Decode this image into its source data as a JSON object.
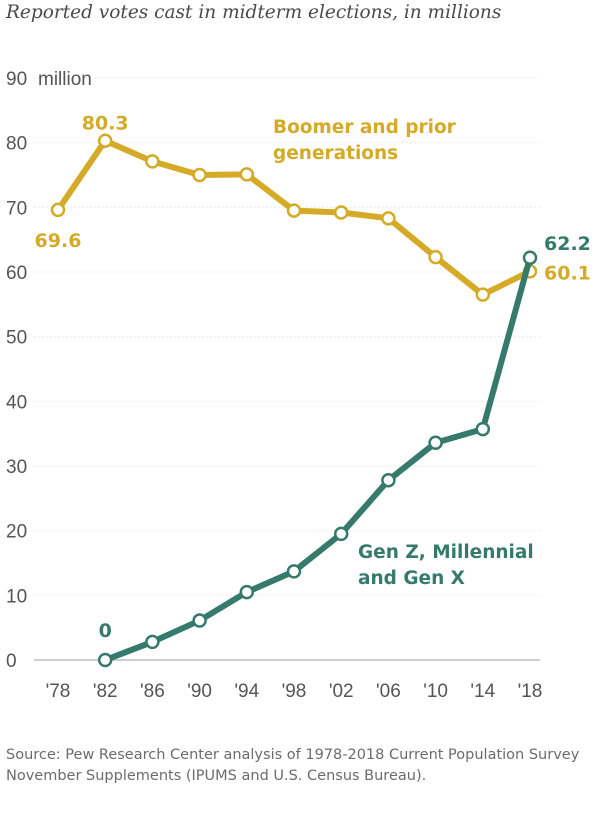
{
  "title": "Reported votes cast in midterm elections, in millions",
  "source": "Source: Pew Research Center analysis of 1978-2018 Current Population Survey November Supplements (IPUMS and U.S. Census Bureau).",
  "chart_data": {
    "type": "line",
    "categories": [
      "'78",
      "'82",
      "'86",
      "'90",
      "'94",
      "'98",
      "'02",
      "'06",
      "'10",
      "'14",
      "'18"
    ],
    "ylim": [
      0,
      90
    ],
    "yticks": [
      "0",
      "10",
      "20",
      "30",
      "40",
      "50",
      "60",
      "70",
      "80",
      "90"
    ],
    "ytick_top_suffix": "million",
    "grid": true,
    "series": [
      {
        "name": "Boomer and prior generations",
        "legend_lines": [
          "Boomer and prior",
          "generations"
        ],
        "color": "#d4aa27",
        "values": [
          69.6,
          80.3,
          77.1,
          75.0,
          75.1,
          69.5,
          69.2,
          68.3,
          62.3,
          56.5,
          60.1
        ],
        "labels": [
          {
            "index": 0,
            "text": "69.6"
          },
          {
            "index": 1,
            "text": "80.3"
          },
          {
            "index": 10,
            "text": "60.1"
          }
        ]
      },
      {
        "name": "Gen Z, Millennial and Gen X",
        "legend_lines": [
          "Gen Z, Millennial",
          "and Gen X"
        ],
        "color": "#357a6a",
        "start_index": 1,
        "values": [
          null,
          0,
          2.8,
          6.1,
          10.5,
          13.7,
          19.5,
          27.8,
          33.6,
          35.7,
          62.2
        ],
        "labels": [
          {
            "index": 1,
            "text": "0"
          },
          {
            "index": 10,
            "text": "62.2"
          }
        ]
      }
    ]
  }
}
